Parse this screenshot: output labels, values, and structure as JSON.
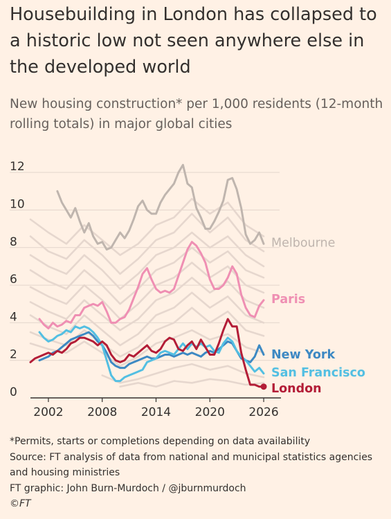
{
  "title": "Housebuilding in London has collapsed to a historic low not seen anywhere else in the developed world",
  "subtitle": "New housing construction* per 1,000 residents (12-month rolling totals) in major global cities",
  "footer": {
    "note": "*Permits, starts or completions depending on data availability",
    "source": "Source: FT analysis of data from national and municipal statistics agencies and housing ministries",
    "credit": "FT graphic: John Burn-Murdoch / @jburnmurdoch",
    "copyright": "©FT"
  },
  "colors": {
    "background": "#fff1e5",
    "grid": "#e3d6cc",
    "axis": "#33302e",
    "other_cities": "#e6d7ce",
    "melbourne": "#bfb5ae",
    "paris": "#ef8fb3",
    "new_york": "#3d89c3",
    "san_francisco": "#53bfe2",
    "london": "#b31d37"
  },
  "chart_data": {
    "type": "line",
    "x_range": [
      2000,
      2027
    ],
    "ylim": [
      0,
      13
    ],
    "y_ticks": [
      0,
      2,
      4,
      6,
      8,
      10,
      12
    ],
    "x_ticks": [
      2002,
      2008,
      2014,
      2020,
      2026
    ],
    "grid": "horizontal",
    "series": [
      {
        "name": "Melbourne",
        "label": "Melbourne",
        "color": "#bfb5ae",
        "highlight": true,
        "x": [
          2003.0,
          2003.5,
          2004.0,
          2004.5,
          2005.0,
          2005.5,
          2006.0,
          2006.5,
          2007.0,
          2007.5,
          2008.0,
          2008.5,
          2009.0,
          2009.5,
          2010.0,
          2010.5,
          2011.0,
          2011.5,
          2012.0,
          2012.5,
          2013.0,
          2013.5,
          2014.0,
          2014.5,
          2015.0,
          2015.5,
          2016.0,
          2016.5,
          2017.0,
          2017.5,
          2018.0,
          2018.5,
          2019.0,
          2019.5,
          2020.0,
          2020.5,
          2021.0,
          2021.5,
          2022.0,
          2022.5,
          2023.0,
          2023.5,
          2024.0,
          2024.5,
          2025.0,
          2025.5,
          2026.0
        ],
        "y": [
          11.0,
          10.4,
          10.0,
          9.6,
          10.1,
          9.4,
          8.8,
          9.3,
          8.6,
          8.2,
          8.3,
          7.9,
          8.0,
          8.4,
          8.8,
          8.5,
          8.9,
          9.5,
          10.2,
          10.5,
          10.0,
          9.8,
          9.8,
          10.4,
          10.8,
          11.1,
          11.4,
          12.0,
          12.4,
          11.4,
          11.2,
          10.1,
          9.6,
          9.0,
          9.0,
          9.4,
          9.9,
          10.5,
          11.6,
          11.7,
          11.1,
          10.1,
          8.7,
          8.2,
          8.4,
          8.8,
          8.2
        ]
      },
      {
        "name": "Paris",
        "label": "Paris",
        "color": "#ef8fb3",
        "highlight": true,
        "x": [
          2001.0,
          2001.5,
          2002.0,
          2002.5,
          2003.0,
          2003.5,
          2004.0,
          2004.5,
          2005.0,
          2005.5,
          2006.0,
          2006.5,
          2007.0,
          2007.5,
          2008.0,
          2008.5,
          2009.0,
          2009.5,
          2010.0,
          2010.5,
          2011.0,
          2011.5,
          2012.0,
          2012.5,
          2013.0,
          2013.5,
          2014.0,
          2014.5,
          2015.0,
          2015.5,
          2016.0,
          2016.5,
          2017.0,
          2017.5,
          2018.0,
          2018.5,
          2019.0,
          2019.5,
          2020.0,
          2020.5,
          2021.0,
          2021.5,
          2022.0,
          2022.5,
          2023.0,
          2023.5,
          2024.0,
          2024.5,
          2025.0,
          2025.5,
          2026.0
        ],
        "y": [
          4.2,
          3.9,
          3.7,
          4.0,
          3.8,
          3.9,
          4.1,
          4.0,
          4.4,
          4.4,
          4.8,
          4.9,
          5.0,
          4.9,
          5.1,
          4.6,
          4.0,
          4.0,
          4.2,
          4.3,
          4.7,
          5.3,
          5.9,
          6.6,
          6.9,
          6.3,
          5.8,
          5.6,
          5.7,
          5.6,
          5.8,
          6.5,
          7.2,
          7.9,
          8.3,
          8.1,
          7.7,
          7.2,
          6.3,
          5.8,
          5.8,
          6.0,
          6.4,
          7.0,
          6.6,
          5.5,
          4.8,
          4.4,
          4.3,
          4.9,
          5.2
        ]
      },
      {
        "name": "New York",
        "label": "New York",
        "color": "#3d89c3",
        "highlight": true,
        "x": [
          2001.0,
          2001.5,
          2002.0,
          2002.5,
          2003.0,
          2003.5,
          2004.0,
          2004.5,
          2005.0,
          2005.5,
          2006.0,
          2006.5,
          2007.0,
          2007.5,
          2008.0,
          2008.5,
          2009.0,
          2009.5,
          2010.0,
          2010.5,
          2011.0,
          2011.5,
          2012.0,
          2012.5,
          2013.0,
          2013.5,
          2014.0,
          2014.5,
          2015.0,
          2015.5,
          2016.0,
          2016.5,
          2017.0,
          2017.5,
          2018.0,
          2018.5,
          2019.0,
          2019.5,
          2020.0,
          2020.5,
          2021.0,
          2021.5,
          2022.0,
          2022.5,
          2023.0,
          2023.5,
          2024.0,
          2024.5,
          2025.0,
          2025.5,
          2026.0
        ],
        "y": [
          2.0,
          2.1,
          2.2,
          2.4,
          2.5,
          2.7,
          2.9,
          3.1,
          3.2,
          3.3,
          3.4,
          3.5,
          3.3,
          3.0,
          2.8,
          2.4,
          1.9,
          1.7,
          1.6,
          1.6,
          1.8,
          1.9,
          2.0,
          2.1,
          2.2,
          2.1,
          2.1,
          2.2,
          2.3,
          2.3,
          2.2,
          2.3,
          2.4,
          2.3,
          2.4,
          2.3,
          2.2,
          2.4,
          2.5,
          2.4,
          2.6,
          2.8,
          3.0,
          2.9,
          2.5,
          2.1,
          2.0,
          1.9,
          2.2,
          2.8,
          2.3
        ]
      },
      {
        "name": "San Francisco",
        "label": "San Francisco",
        "color": "#53bfe2",
        "highlight": true,
        "x": [
          2001.0,
          2001.5,
          2002.0,
          2002.5,
          2003.0,
          2003.5,
          2004.0,
          2004.5,
          2005.0,
          2005.5,
          2006.0,
          2006.5,
          2007.0,
          2007.5,
          2008.0,
          2008.5,
          2009.0,
          2009.5,
          2010.0,
          2010.5,
          2011.0,
          2011.5,
          2012.0,
          2012.5,
          2013.0,
          2013.5,
          2014.0,
          2014.5,
          2015.0,
          2015.5,
          2016.0,
          2016.5,
          2017.0,
          2017.5,
          2018.0,
          2018.5,
          2019.0,
          2019.5,
          2020.0,
          2020.5,
          2021.0,
          2021.5,
          2022.0,
          2022.5,
          2023.0,
          2023.5,
          2024.0,
          2024.5,
          2025.0,
          2025.5,
          2026.0
        ],
        "y": [
          3.5,
          3.2,
          3.0,
          3.1,
          3.3,
          3.4,
          3.6,
          3.5,
          3.8,
          3.7,
          3.8,
          3.7,
          3.5,
          3.2,
          2.8,
          2.0,
          1.2,
          0.9,
          0.9,
          1.1,
          1.2,
          1.3,
          1.4,
          1.5,
          1.9,
          2.0,
          2.1,
          2.4,
          2.5,
          2.4,
          2.3,
          2.6,
          2.9,
          2.6,
          2.9,
          2.7,
          2.9,
          2.7,
          2.8,
          2.5,
          2.4,
          2.9,
          3.2,
          3.0,
          2.5,
          2.2,
          2.0,
          1.7,
          1.4,
          1.6,
          1.3
        ]
      },
      {
        "name": "London",
        "label": "London",
        "color": "#b31d37",
        "highlight": true,
        "x": [
          2000.0,
          2000.5,
          2001.0,
          2001.5,
          2002.0,
          2002.5,
          2003.0,
          2003.5,
          2004.0,
          2004.5,
          2005.0,
          2005.5,
          2006.0,
          2006.5,
          2007.0,
          2007.5,
          2008.0,
          2008.5,
          2009.0,
          2009.5,
          2010.0,
          2010.5,
          2011.0,
          2011.5,
          2012.0,
          2012.5,
          2013.0,
          2013.5,
          2014.0,
          2014.5,
          2015.0,
          2015.5,
          2016.0,
          2016.5,
          2017.0,
          2017.5,
          2018.0,
          2018.5,
          2019.0,
          2019.5,
          2020.0,
          2020.5,
          2021.0,
          2021.5,
          2022.0,
          2022.5,
          2023.0,
          2023.5,
          2024.0,
          2024.5,
          2025.0,
          2025.5,
          2026.0
        ],
        "y": [
          1.9,
          2.1,
          2.2,
          2.3,
          2.4,
          2.3,
          2.5,
          2.4,
          2.6,
          2.9,
          3.0,
          3.2,
          3.2,
          3.1,
          3.0,
          2.8,
          3.0,
          2.8,
          2.3,
          2.0,
          1.9,
          2.0,
          2.3,
          2.2,
          2.4,
          2.6,
          2.8,
          2.5,
          2.4,
          2.6,
          3.0,
          3.2,
          3.1,
          2.6,
          2.5,
          2.8,
          3.0,
          2.6,
          3.1,
          2.7,
          2.3,
          2.3,
          2.9,
          3.6,
          4.2,
          3.8,
          3.8,
          2.4,
          1.5,
          0.7,
          0.7,
          0.6,
          0.6
        ],
        "end_marker": true
      },
      {
        "name": "",
        "highlight": false,
        "x": [
          2000,
          2002,
          2004,
          2006,
          2008,
          2010,
          2012,
          2014,
          2016,
          2018,
          2020,
          2022,
          2024,
          2026
        ],
        "y": [
          9.5,
          8.8,
          8.2,
          9.2,
          8.4,
          7.6,
          8.2,
          9.2,
          9.6,
          10.6,
          9.8,
          10.4,
          9.2,
          8.6
        ]
      },
      {
        "name": "",
        "highlight": false,
        "x": [
          2000,
          2002,
          2004,
          2006,
          2008,
          2010,
          2012,
          2014,
          2016,
          2018,
          2020,
          2022,
          2024,
          2026
        ],
        "y": [
          8.6,
          7.8,
          7.4,
          8.4,
          7.6,
          6.6,
          7.4,
          8.4,
          8.8,
          9.8,
          8.8,
          9.6,
          8.4,
          7.8
        ]
      },
      {
        "name": "",
        "highlight": false,
        "x": [
          2000,
          2002,
          2004,
          2006,
          2008,
          2010,
          2012,
          2014,
          2016,
          2018,
          2020,
          2022,
          2024,
          2026
        ],
        "y": [
          7.6,
          7.0,
          6.6,
          7.6,
          6.8,
          5.8,
          6.6,
          7.6,
          8.0,
          8.8,
          8.0,
          8.6,
          7.6,
          7.0
        ]
      },
      {
        "name": "",
        "highlight": false,
        "x": [
          2000,
          2002,
          2004,
          2006,
          2008,
          2010,
          2012,
          2014,
          2016,
          2018,
          2020,
          2022,
          2024,
          2026
        ],
        "y": [
          6.8,
          6.2,
          5.8,
          6.8,
          6.0,
          5.0,
          5.8,
          6.8,
          7.2,
          8.0,
          7.2,
          7.8,
          6.8,
          6.4
        ]
      },
      {
        "name": "",
        "highlight": false,
        "x": [
          2000,
          2002,
          2004,
          2006,
          2008,
          2010,
          2012,
          2014,
          2016,
          2018,
          2020,
          2022,
          2024,
          2026
        ],
        "y": [
          5.9,
          5.4,
          5.0,
          6.0,
          5.2,
          4.2,
          5.0,
          6.0,
          6.4,
          7.2,
          6.4,
          7.0,
          6.0,
          5.6
        ]
      },
      {
        "name": "",
        "highlight": false,
        "x": [
          2000,
          2002,
          2004,
          2006,
          2008,
          2010,
          2012,
          2014,
          2016,
          2018,
          2020,
          2022,
          2024,
          2026
        ],
        "y": [
          5.1,
          4.6,
          4.2,
          5.2,
          4.4,
          3.6,
          4.2,
          5.2,
          5.6,
          6.4,
          5.6,
          6.2,
          5.2,
          4.8
        ]
      },
      {
        "name": "",
        "highlight": false,
        "x": [
          2000,
          2002,
          2004,
          2006,
          2008,
          2010,
          2012,
          2014,
          2016,
          2018,
          2020,
          2022,
          2024,
          2026
        ],
        "y": [
          4.4,
          3.8,
          3.4,
          4.4,
          3.6,
          2.8,
          3.4,
          4.4,
          4.8,
          5.6,
          4.8,
          5.4,
          4.4,
          4.0
        ]
      },
      {
        "name": "",
        "highlight": false,
        "x": [
          2000,
          2002,
          2004,
          2006,
          2008,
          2010,
          2012,
          2014,
          2016,
          2018,
          2020,
          2022,
          2024,
          2026
        ],
        "y": [
          3.5,
          3.1,
          2.8,
          3.6,
          2.9,
          2.2,
          2.7,
          3.6,
          4.0,
          4.8,
          4.0,
          4.6,
          3.6,
          3.3
        ]
      },
      {
        "name": "",
        "highlight": false,
        "x": [
          2000,
          2002,
          2004,
          2006,
          2008,
          2010,
          2012,
          2014,
          2016,
          2018,
          2020,
          2022,
          2024,
          2026
        ],
        "y": [
          2.9,
          2.6,
          2.4,
          3.0,
          2.4,
          1.7,
          2.2,
          2.9,
          3.2,
          3.6,
          3.1,
          3.4,
          2.7,
          2.4
        ]
      },
      {
        "name": "",
        "highlight": false,
        "x": [
          2008,
          2010,
          2012,
          2014,
          2016,
          2018,
          2020,
          2022,
          2024,
          2026
        ],
        "y": [
          1.2,
          0.8,
          1.0,
          1.3,
          1.6,
          1.8,
          1.5,
          1.7,
          1.3,
          1.1
        ]
      },
      {
        "name": "",
        "highlight": false,
        "x": [
          2010,
          2012,
          2014,
          2016,
          2018,
          2020,
          2022,
          2024,
          2026
        ],
        "y": [
          0.6,
          0.8,
          0.6,
          0.9,
          0.8,
          1.0,
          0.9,
          0.7,
          0.8
        ]
      }
    ]
  }
}
